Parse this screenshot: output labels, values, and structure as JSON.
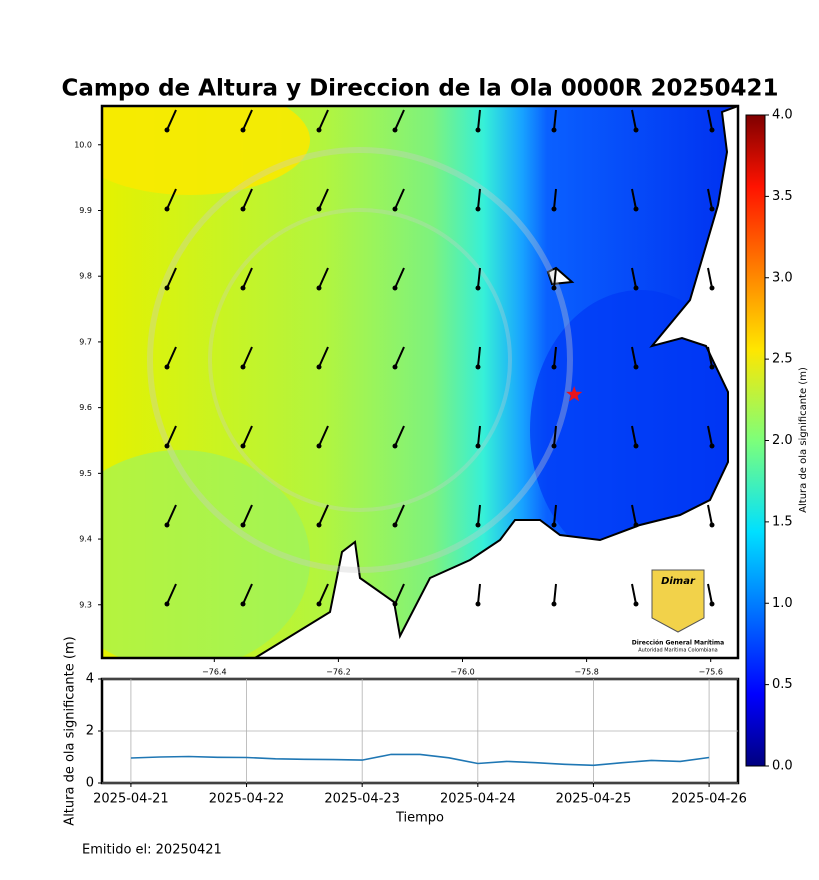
{
  "title": "Campo de Altura y Direccion de la Ola 0000R 20250421",
  "map": {
    "xlim": [
      -76.581,
      -75.556
    ],
    "ylim": [
      9.219,
      10.059
    ],
    "xticks": [
      {
        "value": -76.4,
        "label": "−76.4"
      },
      {
        "value": -76.2,
        "label": "−76.2"
      },
      {
        "value": -76.0,
        "label": "−76.0"
      },
      {
        "value": -75.8,
        "label": "−75.8"
      },
      {
        "value": -75.6,
        "label": "−75.6"
      }
    ],
    "yticks": [
      9.3,
      9.4,
      9.5,
      9.6,
      9.7,
      9.8,
      9.9,
      {
        "value": 10.0,
        "label": "10.0"
      }
    ],
    "station": {
      "lon": -75.82,
      "lat": 9.62,
      "color": "#e8141c"
    }
  },
  "colorbar": {
    "label": "Altura de ola significante (m)",
    "lim": [
      0,
      4
    ],
    "ticks": [
      {
        "value": 0,
        "label": "0.0"
      },
      0.5,
      {
        "value": 1,
        "label": "1.0"
      },
      1.5,
      {
        "value": 2,
        "label": "2.0"
      },
      2.5,
      {
        "value": 3,
        "label": "3.0"
      },
      3.5,
      {
        "value": 4,
        "label": "4.0"
      }
    ]
  },
  "chart_data": {
    "type": "line",
    "x": [
      "2025-04-21 00:00",
      "2025-04-21 06:00",
      "2025-04-21 12:00",
      "2025-04-21 18:00",
      "2025-04-22 00:00",
      "2025-04-22 06:00",
      "2025-04-22 12:00",
      "2025-04-22 18:00",
      "2025-04-23 00:00",
      "2025-04-23 06:00",
      "2025-04-23 12:00",
      "2025-04-23 18:00",
      "2025-04-24 00:00",
      "2025-04-24 06:00",
      "2025-04-24 12:00",
      "2025-04-24 18:00",
      "2025-04-25 00:00",
      "2025-04-25 06:00",
      "2025-04-25 12:00",
      "2025-04-25 18:00",
      "2025-04-26 00:00"
    ],
    "values": [
      0.96,
      1.0,
      1.02,
      0.99,
      0.98,
      0.93,
      0.91,
      0.9,
      0.88,
      1.1,
      1.1,
      0.97,
      0.75,
      0.83,
      0.78,
      0.72,
      0.68,
      0.78,
      0.87,
      0.83,
      0.98
    ],
    "color": "#1f77b4",
    "xlim": [
      "2025-04-20 18:00",
      "2025-04-26 06:00"
    ],
    "xticks": [
      "2025-04-21",
      "2025-04-22",
      "2025-04-23",
      "2025-04-24",
      "2025-04-25",
      "2025-04-26"
    ],
    "ylim": [
      0,
      4
    ],
    "yticks": [
      0,
      2,
      4
    ],
    "grid": true,
    "xlabel": "Tiempo",
    "ylabel": "Altura de ola significante (m)"
  },
  "footer": "Emitido el: 20250421",
  "logo": {
    "brand": "Dimar",
    "name": "Dirección General Marítima",
    "tagline": "Autoridad Marítima Colombiana"
  }
}
